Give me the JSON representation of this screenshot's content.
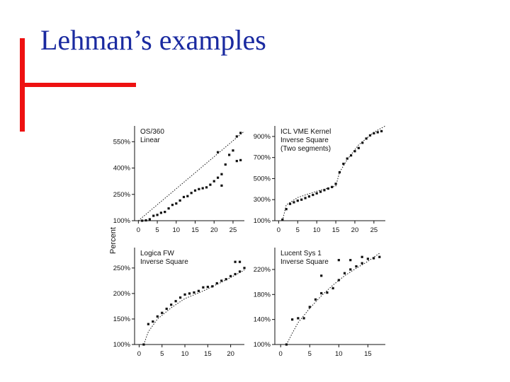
{
  "slide": {
    "title": "Lehman’s examples"
  },
  "colors": {
    "title": "#1a2aa0",
    "accent": "#ee1111",
    "ink": "#111111"
  },
  "ylabel": "Percent",
  "chart_data": [
    {
      "type": "scatter",
      "title": "OS/360\nLinear",
      "xticks": [
        0,
        5,
        10,
        15,
        20,
        25
      ],
      "yticks": [
        100,
        250,
        400,
        550
      ],
      "ytick_labels": [
        "100%",
        "250%",
        "400%",
        "550%"
      ],
      "xlim": [
        -1,
        28
      ],
      "ylim": [
        100,
        640
      ],
      "points": [
        [
          1,
          100
        ],
        [
          2,
          102
        ],
        [
          3,
          108
        ],
        [
          4,
          128
        ],
        [
          5,
          133
        ],
        [
          6,
          145
        ],
        [
          7,
          150
        ],
        [
          8,
          170
        ],
        [
          9,
          190
        ],
        [
          10,
          198
        ],
        [
          11,
          215
        ],
        [
          12,
          235
        ],
        [
          13,
          240
        ],
        [
          14,
          258
        ],
        [
          15,
          272
        ],
        [
          16,
          280
        ],
        [
          17,
          285
        ],
        [
          18,
          290
        ],
        [
          19,
          305
        ],
        [
          20,
          325
        ],
        [
          21,
          345
        ],
        [
          22,
          365
        ],
        [
          23,
          420
        ],
        [
          24,
          475
        ],
        [
          25,
          500
        ],
        [
          26,
          580
        ],
        [
          27,
          600
        ],
        [
          21,
          490
        ],
        [
          22,
          300
        ],
        [
          26,
          440
        ],
        [
          27,
          445
        ]
      ],
      "fit": [
        [
          0,
          100
        ],
        [
          28,
          610
        ]
      ]
    },
    {
      "type": "scatter",
      "title": "ICL VME Kernel\nInverse Square\n(Two segments)",
      "xticks": [
        0,
        5,
        10,
        15,
        20,
        25
      ],
      "yticks": [
        100,
        300,
        500,
        700,
        900
      ],
      "ytick_labels": [
        "100%",
        "300%",
        "500%",
        "700%",
        "900%"
      ],
      "xlim": [
        -1,
        28
      ],
      "ylim": [
        100,
        1000
      ],
      "points": [
        [
          1,
          110
        ],
        [
          2,
          210
        ],
        [
          3,
          260
        ],
        [
          4,
          275
        ],
        [
          5,
          290
        ],
        [
          6,
          300
        ],
        [
          7,
          315
        ],
        [
          8,
          330
        ],
        [
          9,
          345
        ],
        [
          10,
          360
        ],
        [
          11,
          375
        ],
        [
          12,
          390
        ],
        [
          13,
          405
        ],
        [
          14,
          420
        ],
        [
          15,
          450
        ],
        [
          16,
          560
        ],
        [
          17,
          640
        ],
        [
          18,
          690
        ],
        [
          19,
          720
        ],
        [
          20,
          760
        ],
        [
          21,
          790
        ],
        [
          22,
          840
        ],
        [
          23,
          880
        ],
        [
          24,
          910
        ],
        [
          25,
          930
        ],
        [
          26,
          940
        ],
        [
          27,
          950
        ]
      ],
      "fit": [
        [
          1,
          100
        ],
        [
          2,
          250
        ],
        [
          5,
          320
        ],
        [
          10,
          380
        ],
        [
          15,
          430
        ],
        [
          16,
          560
        ],
        [
          18,
          680
        ],
        [
          21,
          820
        ],
        [
          25,
          940
        ],
        [
          28,
          1000
        ]
      ]
    },
    {
      "type": "scatter",
      "title": "Logica FW\nInverse Square",
      "xticks": [
        0,
        5,
        10,
        15,
        20
      ],
      "yticks": [
        100,
        150,
        200,
        250
      ],
      "ytick_labels": [
        "100%",
        "150%",
        "200%",
        "250%"
      ],
      "xlim": [
        -1,
        23
      ],
      "ylim": [
        100,
        290
      ],
      "points": [
        [
          1,
          100
        ],
        [
          2,
          140
        ],
        [
          3,
          145
        ],
        [
          4,
          155
        ],
        [
          5,
          162
        ],
        [
          6,
          170
        ],
        [
          7,
          178
        ],
        [
          8,
          185
        ],
        [
          9,
          192
        ],
        [
          10,
          198
        ],
        [
          11,
          200
        ],
        [
          12,
          202
        ],
        [
          13,
          205
        ],
        [
          14,
          212
        ],
        [
          15,
          213
        ],
        [
          16,
          214
        ],
        [
          17,
          220
        ],
        [
          18,
          225
        ],
        [
          19,
          228
        ],
        [
          20,
          234
        ],
        [
          21,
          238
        ],
        [
          22,
          243
        ],
        [
          23,
          250
        ],
        [
          21,
          262
        ],
        [
          22,
          262
        ]
      ],
      "fit": [
        [
          1,
          100
        ],
        [
          2,
          125
        ],
        [
          4,
          150
        ],
        [
          7,
          172
        ],
        [
          10,
          190
        ],
        [
          14,
          205
        ],
        [
          18,
          222
        ],
        [
          21,
          236
        ],
        [
          23,
          246
        ]
      ]
    },
    {
      "type": "scatter",
      "title": "Lucent Sys 1\nInverse Square",
      "xticks": [
        0,
        5,
        10,
        15
      ],
      "yticks": [
        100,
        140,
        180,
        220
      ],
      "ytick_labels": [
        "100%",
        "140%",
        "180%",
        "220%"
      ],
      "xlim": [
        -1,
        18
      ],
      "ylim": [
        100,
        255
      ],
      "points": [
        [
          1,
          100
        ],
        [
          2,
          140
        ],
        [
          3,
          142
        ],
        [
          4,
          142
        ],
        [
          5,
          160
        ],
        [
          6,
          172
        ],
        [
          7,
          182
        ],
        [
          8,
          183
        ],
        [
          9,
          190
        ],
        [
          10,
          203
        ],
        [
          11,
          214
        ],
        [
          12,
          220
        ],
        [
          13,
          225
        ],
        [
          14,
          230
        ],
        [
          15,
          237
        ],
        [
          16,
          238
        ],
        [
          17,
          240
        ],
        [
          7,
          210
        ],
        [
          10,
          235
        ],
        [
          12,
          235
        ],
        [
          14,
          240
        ]
      ],
      "fit": [
        [
          1,
          100
        ],
        [
          2,
          118
        ],
        [
          3,
          135
        ],
        [
          5,
          158
        ],
        [
          7,
          178
        ],
        [
          9,
          195
        ],
        [
          11,
          210
        ],
        [
          13,
          222
        ],
        [
          15,
          233
        ],
        [
          17,
          246
        ]
      ]
    }
  ]
}
